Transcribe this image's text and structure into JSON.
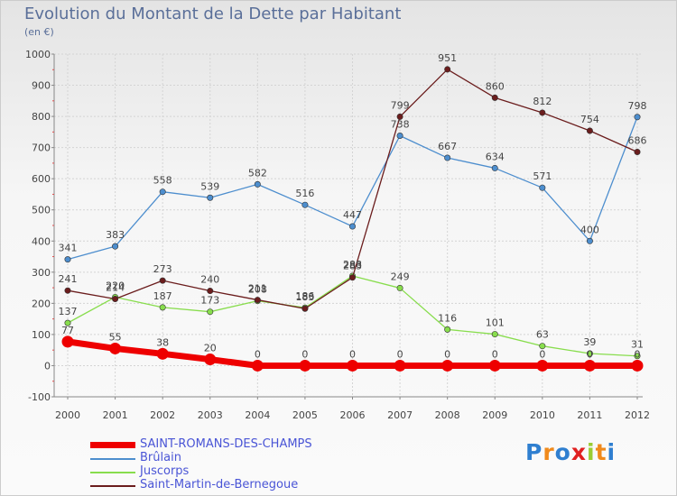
{
  "chart_data": {
    "type": "line",
    "title": "Evolution du Montant de la Dette par Habitant",
    "subtitle": "(en €)",
    "xlabel": "",
    "ylabel": "",
    "ylim": [
      -100,
      1000
    ],
    "yticks": [
      -100,
      0,
      100,
      200,
      300,
      400,
      500,
      600,
      700,
      800,
      900,
      1000
    ],
    "x": [
      "2000",
      "2001",
      "2002",
      "2003",
      "2004",
      "2005",
      "2006",
      "2007",
      "2008",
      "2009",
      "2010",
      "2011",
      "2012"
    ],
    "series": [
      {
        "name": "SAINT-ROMANS-DES-CHAMPS",
        "color": "#ee0000",
        "values": [
          77,
          55,
          38,
          20,
          0,
          0,
          0,
          0,
          0,
          0,
          0,
          0,
          0
        ]
      },
      {
        "name": "Brûlain",
        "color": "#4d8ece",
        "values": [
          341,
          383,
          558,
          539,
          582,
          516,
          447,
          738,
          667,
          634,
          571,
          400,
          798
        ]
      },
      {
        "name": "Juscorps",
        "color": "#88dd4d",
        "values": [
          137,
          220,
          187,
          173,
          208,
          186,
          288,
          249,
          116,
          101,
          63,
          39,
          31
        ]
      },
      {
        "name": "Saint-Martin-de-Bernegoue",
        "color": "#6b1d1d",
        "values": [
          241,
          214,
          273,
          240,
          211,
          183,
          283,
          799,
          951,
          860,
          812,
          754,
          686
        ]
      }
    ]
  },
  "legend": {
    "items": [
      {
        "label": "SAINT-ROMANS-DES-CHAMPS",
        "color": "#ee0000"
      },
      {
        "label": "Brûlain",
        "color": "#4d8ece"
      },
      {
        "label": "Juscorps",
        "color": "#88dd4d"
      },
      {
        "label": "Saint-Martin-de-Bernegoue",
        "color": "#6b1d1d"
      }
    ]
  },
  "logo": {
    "text": "Proxiti"
  }
}
